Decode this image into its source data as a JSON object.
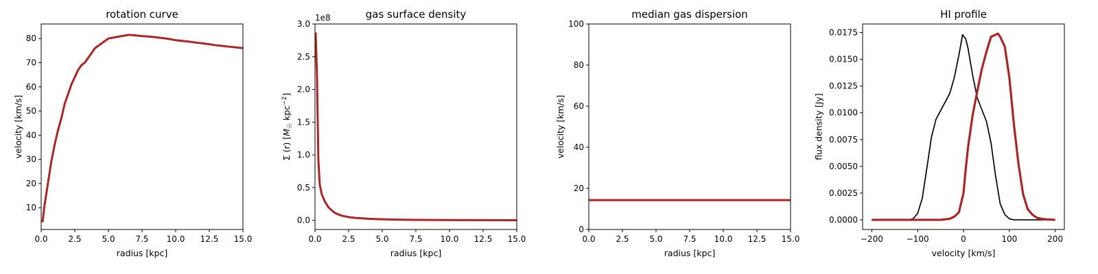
{
  "chart_data": [
    {
      "type": "line",
      "title": "rotation curve",
      "xlabel": "radius [kpc]",
      "ylabel": "velocity [km/s]",
      "xlim": [
        0,
        15
      ],
      "ylim": [
        1,
        86
      ],
      "xticks": [
        0,
        2.5,
        5,
        7.5,
        10,
        12.5,
        15
      ],
      "xtick_labels": [
        "0.0",
        "2.5",
        "5.0",
        "7.5",
        "10.0",
        "12.5",
        "15.0"
      ],
      "yticks": [
        10,
        20,
        30,
        40,
        50,
        60,
        70,
        80
      ],
      "ytick_labels": [
        "10",
        "20",
        "30",
        "40",
        "50",
        "60",
        "70",
        "80"
      ],
      "series": [
        {
          "color": "#b22222",
          "width": 3,
          "x": [
            0.1,
            0.25,
            0.5,
            0.75,
            1.0,
            1.25,
            1.5,
            1.75,
            2.0,
            2.25,
            2.5,
            2.75,
            3.0,
            3.25,
            3.5,
            3.75,
            4.0,
            4.25,
            4.5,
            4.75,
            5.0,
            5.5,
            6.0,
            6.5,
            7.0,
            7.5,
            8.0,
            8.5,
            9.0,
            9.5,
            10.0,
            10.5,
            11.0,
            11.5,
            12.0,
            12.5,
            13.0,
            13.5,
            14.0,
            14.5,
            15.0
          ],
          "y": [
            4,
            11,
            20,
            29,
            36,
            42,
            47,
            53,
            57,
            61,
            64,
            67,
            69,
            70,
            72,
            74,
            76,
            77,
            78,
            79,
            80,
            80.5,
            81,
            81.5,
            81.3,
            81,
            80.8,
            80.5,
            80.2,
            79.8,
            79.3,
            79,
            78.7,
            78.3,
            78,
            77.6,
            77.2,
            76.9,
            76.6,
            76.3,
            76
          ]
        }
      ]
    },
    {
      "type": "line",
      "title": "gas surface density",
      "xlabel": "radius [kpc]",
      "ylabel": "Σ (r) [M☉ kpc⁻²]",
      "offset_text": "1e8",
      "xlim": [
        0,
        15
      ],
      "ylim": [
        -0.14,
        3.0
      ],
      "xticks": [
        0,
        2.5,
        5,
        7.5,
        10,
        12.5,
        15
      ],
      "xtick_labels": [
        "0.0",
        "2.5",
        "5.0",
        "7.5",
        "10.0",
        "12.5",
        "15.0"
      ],
      "yticks": [
        0,
        0.5,
        1.0,
        1.5,
        2.0,
        2.5,
        3.0
      ],
      "ytick_labels": [
        "0.0",
        "0.5",
        "1.0",
        "1.5",
        "2.0",
        "2.5",
        "3.0"
      ],
      "series": [
        {
          "color": "#b22222",
          "width": 3,
          "x": [
            0.05,
            0.15,
            0.25,
            0.35,
            0.5,
            0.75,
            1.0,
            1.25,
            1.5,
            2.0,
            2.5,
            3.0,
            4.0,
            5.0,
            6.0,
            7.5,
            9.0,
            10.0,
            12.5,
            15.0
          ],
          "y": [
            2.87,
            2.2,
            0.93,
            0.55,
            0.4,
            0.28,
            0.2,
            0.15,
            0.11,
            0.07,
            0.05,
            0.037,
            0.024,
            0.016,
            0.011,
            0.007,
            0.005,
            0.004,
            0.0025,
            0.0015
          ]
        }
      ]
    },
    {
      "type": "line",
      "title": "median gas dispersion",
      "xlabel": "radius [kpc]",
      "ylabel": "velocity [km/s]",
      "xlim": [
        0,
        15
      ],
      "ylim": [
        0,
        100
      ],
      "xticks": [
        0,
        2.5,
        5,
        7.5,
        10,
        12.5,
        15
      ],
      "xtick_labels": [
        "0.0",
        "2.5",
        "5.0",
        "7.5",
        "10.0",
        "12.5",
        "15.0"
      ],
      "yticks": [
        0,
        20,
        40,
        60,
        80,
        100
      ],
      "ytick_labels": [
        "0",
        "20",
        "40",
        "60",
        "80",
        "100"
      ],
      "series": [
        {
          "color": "#b22222",
          "width": 3,
          "x": [
            0,
            15
          ],
          "y": [
            14.3,
            14.3
          ]
        }
      ]
    },
    {
      "type": "line",
      "title": "HI profile",
      "xlabel": "velocity [km/s]",
      "ylabel": "flux density [Jy]",
      "xlim": [
        -220,
        220
      ],
      "ylim": [
        -0.0009,
        0.0183
      ],
      "xticks": [
        -200,
        -100,
        0,
        100,
        200
      ],
      "xtick_labels": [
        "−200",
        "−100",
        "0",
        "100",
        "200"
      ],
      "yticks": [
        0,
        0.0025,
        0.005,
        0.0075,
        0.01,
        0.0125,
        0.015,
        0.0175
      ],
      "ytick_labels": [
        "0.0000",
        "0.0025",
        "0.0050",
        "0.0075",
        "0.0100",
        "0.0125",
        "0.0150",
        "0.0175"
      ],
      "series": [
        {
          "color": "#000000",
          "width": 1.7,
          "x": [
            -200,
            -180,
            -160,
            -140,
            -120,
            -110,
            -100,
            -90,
            -80,
            -70,
            -60,
            -50,
            -40,
            -30,
            -20,
            -10,
            -2,
            5,
            10,
            20,
            30,
            40,
            50,
            60,
            70,
            80,
            90,
            100,
            110,
            120,
            140,
            160,
            180,
            200
          ],
          "y": [
            0,
            0,
            0,
            0,
            0,
            0.0001,
            0.0006,
            0.002,
            0.0048,
            0.0077,
            0.0094,
            0.0102,
            0.011,
            0.0118,
            0.0133,
            0.0154,
            0.0173,
            0.0169,
            0.016,
            0.0135,
            0.0114,
            0.0103,
            0.0092,
            0.0072,
            0.0041,
            0.0015,
            0.0005,
            0.0001,
            0,
            0,
            0,
            0,
            0,
            0
          ]
        },
        {
          "color": "#b22222",
          "width": 3.2,
          "x": [
            -200,
            -150,
            -100,
            -50,
            -30,
            -20,
            -10,
            0,
            5,
            10,
            20,
            30,
            40,
            50,
            60,
            70,
            75,
            80,
            90,
            100,
            110,
            120,
            130,
            140,
            150,
            160,
            170,
            180,
            200
          ],
          "y": [
            0,
            0,
            0,
            0,
            0.0001,
            0.0003,
            0.0007,
            0.0025,
            0.0048,
            0.0068,
            0.0098,
            0.012,
            0.0141,
            0.0157,
            0.0171,
            0.0173,
            0.0174,
            0.0171,
            0.0162,
            0.0133,
            0.0089,
            0.0052,
            0.0024,
            0.001,
            0.0005,
            0.0002,
            0.0001,
            5e-05,
            0
          ]
        }
      ]
    }
  ]
}
